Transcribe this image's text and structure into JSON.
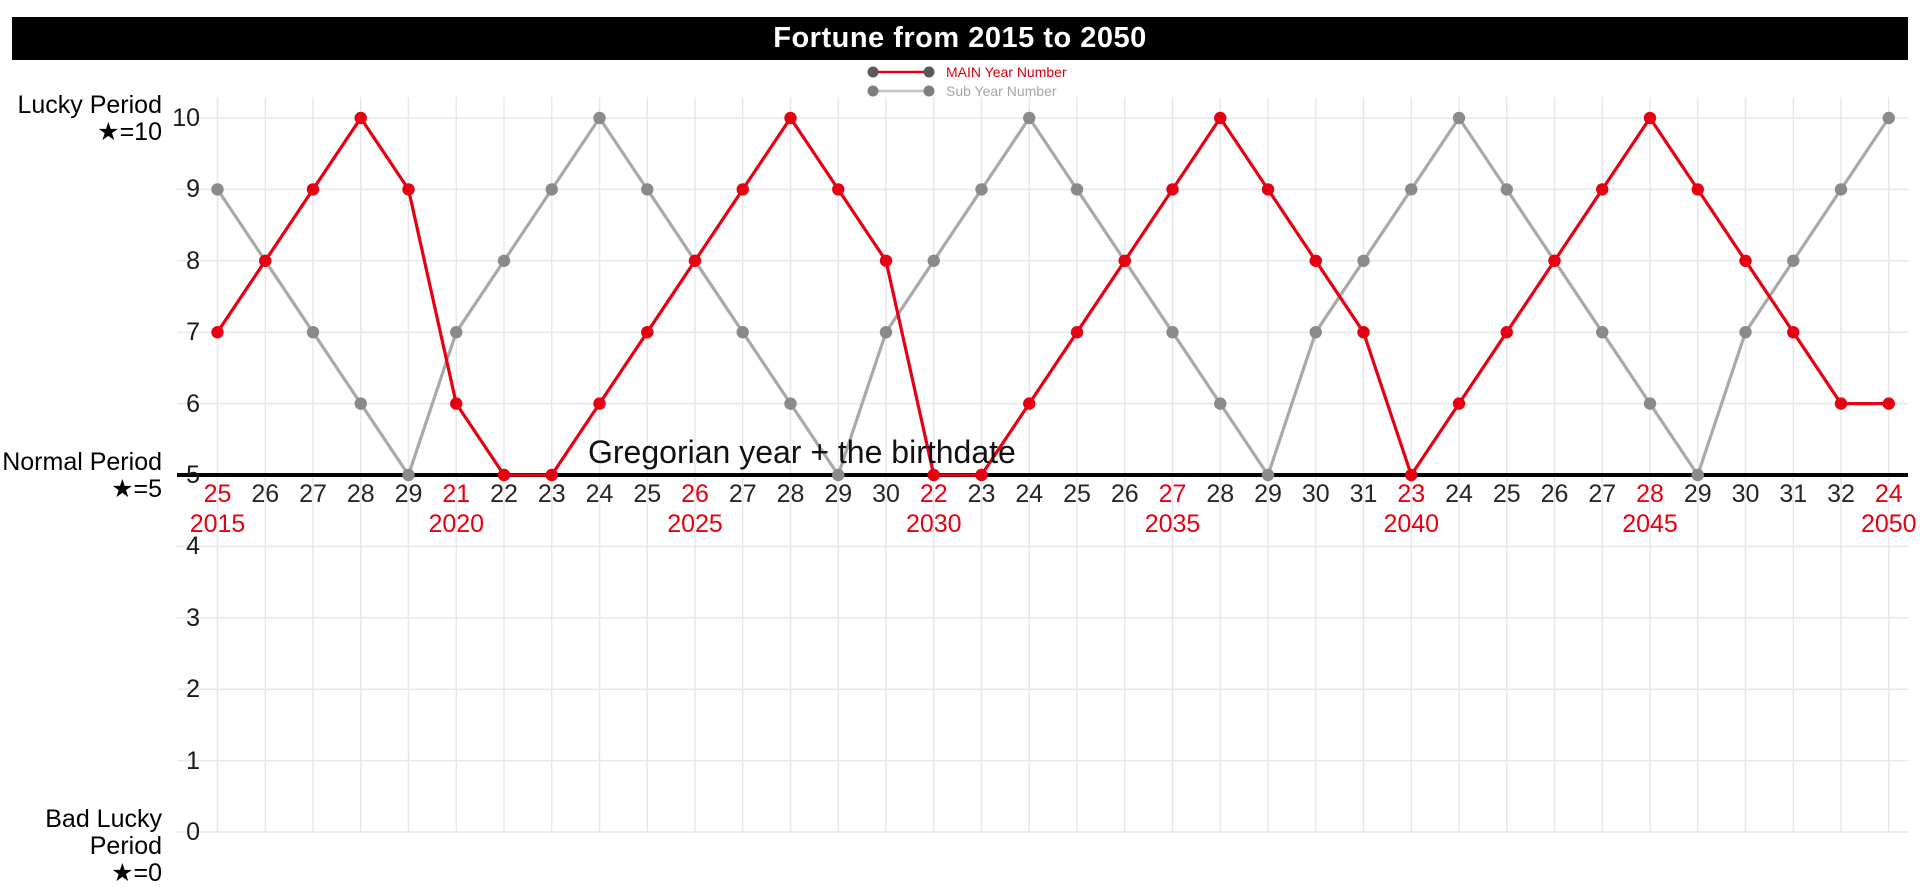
{
  "title": "Fortune from 2015 to 2050",
  "annotation": "Gregorian year + the birthdate",
  "legend": [
    {
      "label": "MAIN Year Number",
      "line_color": "#e60012",
      "dot_color": "#595959",
      "text_color": "#d7000f"
    },
    {
      "label": "Sub Year Number",
      "line_color": "#c2c2c2",
      "dot_color": "#7f7f7f",
      "text_color": "#a6a6a6"
    }
  ],
  "side_labels": [
    {
      "line1": "Lucky Period",
      "line2": "★=10",
      "level": 10
    },
    {
      "line1": "Normal Period",
      "line2": "★=5",
      "level": 5
    },
    {
      "line1": "Bad Lucky Period",
      "line2": "★=0",
      "level": 0
    }
  ],
  "colors": {
    "main": "#e60012",
    "sub_line": "#a9a9a9",
    "sub_dot": "#8a8a8a",
    "grid": "#e8e8e8",
    "axis": "#000000",
    "tick": "#262626",
    "highlight": "#e60012",
    "title_bg": "#000000",
    "title_fg": "#ffffff"
  },
  "chart_data": {
    "type": "line",
    "title": "Fortune from 2015 to 2050",
    "x": [
      2015,
      2016,
      2017,
      2018,
      2019,
      2020,
      2021,
      2022,
      2023,
      2024,
      2025,
      2026,
      2027,
      2028,
      2029,
      2030,
      2031,
      2032,
      2033,
      2034,
      2035,
      2036,
      2037,
      2038,
      2039,
      2040,
      2041,
      2042,
      2043,
      2044,
      2045,
      2046,
      2047,
      2048,
      2049,
      2050
    ],
    "x_tick_labels": [
      "25",
      "26",
      "27",
      "28",
      "29",
      "21",
      "22",
      "23",
      "24",
      "25",
      "26",
      "27",
      "28",
      "29",
      "30",
      "22",
      "23",
      "24",
      "25",
      "26",
      "27",
      "28",
      "29",
      "30",
      "31",
      "23",
      "24",
      "25",
      "26",
      "27",
      "28",
      "29",
      "30",
      "31",
      "32",
      "24"
    ],
    "x_tick_highlight_interval": 5,
    "year_label_interval": 5,
    "year_labels": [
      "2015",
      "2020",
      "2025",
      "2030",
      "2035",
      "2040",
      "2045",
      "2050"
    ],
    "series": [
      {
        "name": "MAIN Year Number",
        "color": "#e60012",
        "dot_color": "#e60012",
        "values": [
          7,
          8,
          9,
          10,
          9,
          6,
          5,
          5,
          6,
          7,
          8,
          9,
          10,
          9,
          8,
          5,
          5,
          6,
          7,
          8,
          9,
          10,
          9,
          8,
          7,
          5,
          6,
          7,
          8,
          9,
          10,
          9,
          8,
          7,
          6,
          6
        ]
      },
      {
        "name": "Sub Year Number",
        "color": "#a9a9a9",
        "dot_color": "#8a8a8a",
        "values": [
          9,
          8,
          7,
          6,
          5,
          7,
          8,
          9,
          10,
          9,
          8,
          7,
          6,
          5,
          7,
          8,
          9,
          10,
          9,
          8,
          7,
          6,
          5,
          7,
          8,
          9,
          10,
          9,
          8,
          7,
          6,
          5,
          7,
          8,
          9,
          10
        ]
      }
    ],
    "ylim": [
      0,
      10
    ],
    "yticks": [
      0,
      1,
      2,
      3,
      4,
      5,
      6,
      7,
      8,
      9,
      10
    ],
    "axis_line_level": 5,
    "grid": true,
    "legend_position": "top-center",
    "ylabel": "",
    "xlabel": "Gregorian year + the birthdate"
  }
}
